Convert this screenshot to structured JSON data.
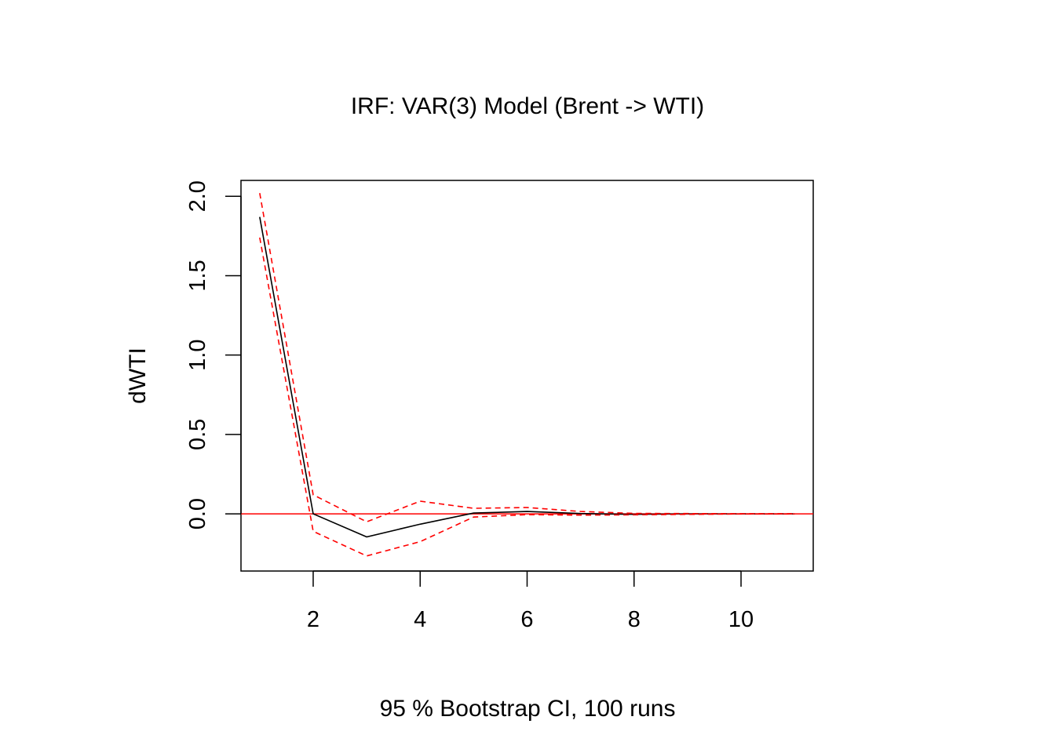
{
  "chart_data": {
    "type": "line",
    "title": "IRF: VAR(3) Model (Brent -> WTI)",
    "xlabel": "95 % Bootstrap CI,  100 runs",
    "ylabel": "dWTI",
    "xlim": [
      0.65,
      11.35
    ],
    "ylim": [
      -0.36,
      2.1
    ],
    "x_ticks": [
      2,
      4,
      6,
      8,
      10
    ],
    "y_ticks": [
      0.0,
      0.5,
      1.0,
      1.5,
      2.0
    ],
    "y_tick_labels": [
      "0.0",
      "0.5",
      "1.0",
      "1.5",
      "2.0"
    ],
    "x": [
      1,
      2,
      3,
      4,
      5,
      6,
      7,
      8,
      9,
      10,
      11
    ],
    "series": [
      {
        "role": "irf",
        "color": "#000000",
        "dash": "solid",
        "values": [
          1.87,
          0.0,
          -0.145,
          -0.065,
          0.005,
          0.015,
          0.002,
          -0.003,
          0.0,
          0.0,
          0.0
        ]
      },
      {
        "role": "upper",
        "color": "#ff0000",
        "dash": "dashed",
        "values": [
          2.02,
          0.12,
          -0.05,
          0.08,
          0.035,
          0.04,
          0.015,
          0.003,
          0.002,
          0.001,
          0.001
        ]
      },
      {
        "role": "lower",
        "color": "#ff0000",
        "dash": "dashed",
        "values": [
          1.74,
          -0.11,
          -0.265,
          -0.175,
          -0.02,
          -0.005,
          -0.008,
          -0.006,
          -0.003,
          -0.001,
          -0.001
        ]
      }
    ],
    "reference_line": {
      "y": 0,
      "color": "#ff0000"
    },
    "grid": false
  }
}
